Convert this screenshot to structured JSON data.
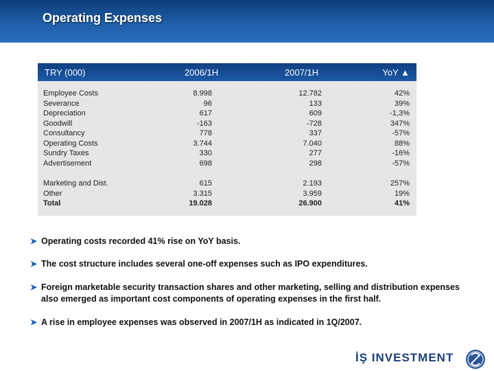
{
  "title": "Operating Expenses",
  "table": {
    "headers": [
      "TRY (000)",
      "2006/1H",
      "2007/1H",
      "YoY ▲"
    ],
    "rows": [
      {
        "label": "Employee Costs",
        "v2006": "8.998",
        "v2007": "12.782",
        "yoy": "42%"
      },
      {
        "label": "Severance",
        "v2006": "96",
        "v2007": "133",
        "yoy": "39%"
      },
      {
        "label": "Depreciation",
        "v2006": "617",
        "v2007": "609",
        "yoy": "-1,3%"
      },
      {
        "label": "Goodwill",
        "v2006": "-163",
        "v2007": "-728",
        "yoy": "347%"
      },
      {
        "label": "Consultancy",
        "v2006": "778",
        "v2007": "337",
        "yoy": "-57%"
      },
      {
        "label": "Operating Costs",
        "v2006": "3.744",
        "v2007": "7.040",
        "yoy": "88%"
      },
      {
        "label": "Sundry Taxes",
        "v2006": "330",
        "v2007": "277",
        "yoy": "-16%"
      },
      {
        "label": "Advertisement",
        "v2006": "698",
        "v2007": "298",
        "yoy": "-57%"
      },
      {
        "label": "Marketing and Dist.",
        "v2006": "615",
        "v2007": "2.193",
        "yoy": "257%"
      },
      {
        "label": "Other",
        "v2006": "3.315",
        "v2007": "3.959",
        "yoy": "19%"
      },
      {
        "label": "Total",
        "v2006": "19.028",
        "v2007": "26.900",
        "yoy": "41%"
      }
    ]
  },
  "bullets": [
    "Operating costs recorded 41% rise on YoY basis.",
    "The cost structure includes several one-off expenses such as IPO expenditures.",
    "Foreign marketable security transaction shares and other marketing, selling and distribution expenses also emerged as important cost components of operating expenses in the first half.",
    "A rise in employee expenses was observed in 2007/1H as indicated in 1Q/2007."
  ],
  "logo": {
    "text": "İŞ INVESTMENT"
  },
  "colors": {
    "header": "#1f5ea8",
    "table_header": "#0f3f80",
    "table_body": "#e6e6e6",
    "bullet_arrow": "#1a5fb4",
    "logo": "#1b3f7a"
  }
}
